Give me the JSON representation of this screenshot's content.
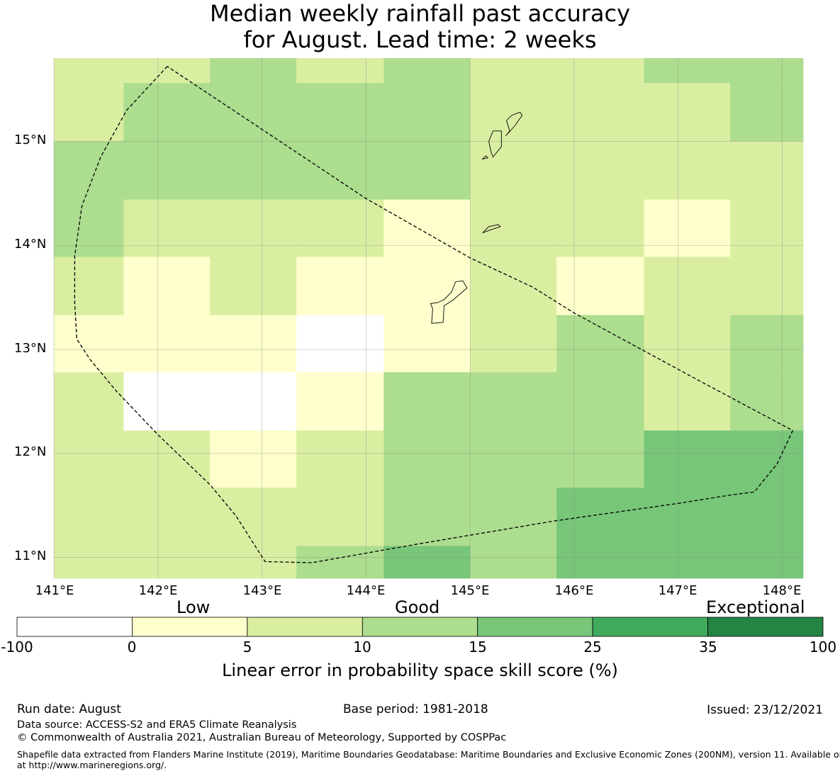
{
  "title": {
    "line1": "Median weekly rainfall past accuracy",
    "line2": "for August. Lead time: 2 weeks"
  },
  "map": {
    "lon_min": 141.0,
    "lon_max": 148.2,
    "lat_min": 10.8,
    "lat_max": 15.8,
    "x_ticks": [
      "141°E",
      "142°E",
      "143°E",
      "144°E",
      "145°E",
      "146°E",
      "147°E",
      "148°E"
    ],
    "y_ticks": [
      "15°N",
      "14°N",
      "13°N",
      "12°N",
      "11°N"
    ],
    "class_colors": {
      "0": "#ffffff",
      "1": "#feffcc",
      "2": "#daeea2",
      "3": "#addd8e",
      "4": "#78c679",
      "5": "#41ab5d",
      "6": "#238443"
    },
    "grid": {
      "columns": [
        {
          "lon_from": 141.0,
          "lon_to": 141.67,
          "cells": [
            [
              15.56,
              15.8,
              2
            ],
            [
              15.0,
              15.56,
              2
            ],
            [
              14.44,
              15.0,
              3
            ],
            [
              13.89,
              14.44,
              3
            ],
            [
              13.33,
              13.89,
              2
            ],
            [
              12.78,
              13.33,
              1
            ],
            [
              12.22,
              12.78,
              2
            ],
            [
              11.67,
              12.22,
              2
            ],
            [
              11.11,
              11.67,
              2
            ],
            [
              10.8,
              11.11,
              2
            ]
          ]
        },
        {
          "lon_from": 141.67,
          "lon_to": 142.5,
          "cells": [
            [
              15.56,
              15.8,
              2
            ],
            [
              15.0,
              15.56,
              3
            ],
            [
              14.44,
              15.0,
              3
            ],
            [
              13.89,
              14.44,
              2
            ],
            [
              13.33,
              13.89,
              1
            ],
            [
              12.78,
              13.33,
              1
            ],
            [
              12.22,
              12.78,
              0
            ],
            [
              11.67,
              12.22,
              2
            ],
            [
              11.11,
              11.67,
              2
            ],
            [
              10.8,
              11.11,
              2
            ]
          ]
        },
        {
          "lon_from": 142.5,
          "lon_to": 143.33,
          "cells": [
            [
              15.56,
              15.8,
              3
            ],
            [
              15.0,
              15.56,
              3
            ],
            [
              14.44,
              15.0,
              3
            ],
            [
              13.89,
              14.44,
              2
            ],
            [
              13.33,
              13.89,
              2
            ],
            [
              12.78,
              13.33,
              1
            ],
            [
              12.22,
              12.78,
              0
            ],
            [
              11.67,
              12.22,
              1
            ],
            [
              11.11,
              11.67,
              2
            ],
            [
              10.8,
              11.11,
              2
            ]
          ]
        },
        {
          "lon_from": 143.33,
          "lon_to": 144.17,
          "cells": [
            [
              15.56,
              15.8,
              2
            ],
            [
              15.0,
              15.56,
              3
            ],
            [
              14.44,
              15.0,
              3
            ],
            [
              13.89,
              14.44,
              2
            ],
            [
              13.33,
              13.89,
              1
            ],
            [
              12.78,
              13.33,
              0
            ],
            [
              12.22,
              12.78,
              1
            ],
            [
              11.67,
              12.22,
              2
            ],
            [
              11.11,
              11.67,
              2
            ],
            [
              10.8,
              11.11,
              3
            ]
          ]
        },
        {
          "lon_from": 144.17,
          "lon_to": 145.0,
          "cells": [
            [
              15.56,
              15.8,
              3
            ],
            [
              15.0,
              15.56,
              3
            ],
            [
              14.44,
              15.0,
              3
            ],
            [
              13.89,
              14.44,
              1
            ],
            [
              13.33,
              13.89,
              1
            ],
            [
              12.78,
              13.33,
              1
            ],
            [
              12.22,
              12.78,
              3
            ],
            [
              11.67,
              12.22,
              3
            ],
            [
              11.11,
              11.67,
              3
            ],
            [
              10.8,
              11.11,
              4
            ]
          ]
        },
        {
          "lon_from": 145.0,
          "lon_to": 145.83,
          "cells": [
            [
              15.56,
              15.8,
              2
            ],
            [
              15.0,
              15.56,
              2
            ],
            [
              14.44,
              15.0,
              2
            ],
            [
              13.89,
              14.44,
              2
            ],
            [
              13.33,
              13.89,
              2
            ],
            [
              12.78,
              13.33,
              2
            ],
            [
              12.22,
              12.78,
              3
            ],
            [
              11.67,
              12.22,
              3
            ],
            [
              11.11,
              11.67,
              3
            ],
            [
              10.8,
              11.11,
              3
            ]
          ]
        },
        {
          "lon_from": 145.83,
          "lon_to": 146.67,
          "cells": [
            [
              15.56,
              15.8,
              2
            ],
            [
              15.0,
              15.56,
              2
            ],
            [
              14.44,
              15.0,
              2
            ],
            [
              13.89,
              14.44,
              2
            ],
            [
              13.33,
              13.89,
              1
            ],
            [
              12.78,
              13.33,
              3
            ],
            [
              12.22,
              12.78,
              3
            ],
            [
              11.67,
              12.22,
              3
            ],
            [
              11.11,
              11.67,
              4
            ],
            [
              10.8,
              11.11,
              4
            ]
          ]
        },
        {
          "lon_from": 146.67,
          "lon_to": 147.5,
          "cells": [
            [
              15.56,
              15.8,
              3
            ],
            [
              15.0,
              15.56,
              2
            ],
            [
              14.44,
              15.0,
              2
            ],
            [
              13.89,
              14.44,
              1
            ],
            [
              13.33,
              13.89,
              2
            ],
            [
              12.78,
              13.33,
              2
            ],
            [
              12.22,
              12.78,
              2
            ],
            [
              11.67,
              12.22,
              4
            ],
            [
              11.11,
              11.67,
              4
            ],
            [
              10.8,
              11.11,
              4
            ]
          ]
        },
        {
          "lon_from": 147.5,
          "lon_to": 148.2,
          "cells": [
            [
              15.56,
              15.8,
              3
            ],
            [
              15.0,
              15.56,
              3
            ],
            [
              14.44,
              15.0,
              2
            ],
            [
              13.89,
              14.44,
              2
            ],
            [
              13.33,
              13.89,
              2
            ],
            [
              12.78,
              13.33,
              3
            ],
            [
              12.22,
              12.78,
              3
            ],
            [
              11.67,
              12.22,
              4
            ],
            [
              11.11,
              11.67,
              4
            ],
            [
              10.8,
              11.11,
              4
            ]
          ]
        }
      ]
    },
    "eez_boundary": [
      [
        142.09,
        15.72
      ],
      [
        141.7,
        15.3
      ],
      [
        141.45,
        14.85
      ],
      [
        141.27,
        14.38
      ],
      [
        141.2,
        13.9
      ],
      [
        141.2,
        13.45
      ],
      [
        141.22,
        13.1
      ],
      [
        141.35,
        12.9
      ],
      [
        141.6,
        12.6
      ],
      [
        142.0,
        12.18
      ],
      [
        142.5,
        11.7
      ],
      [
        142.75,
        11.4
      ],
      [
        143.03,
        10.96
      ],
      [
        143.48,
        10.95
      ],
      [
        144.5,
        11.13
      ],
      [
        145.8,
        11.35
      ],
      [
        147.0,
        11.52
      ],
      [
        147.5,
        11.6
      ],
      [
        147.73,
        11.63
      ],
      [
        147.95,
        11.9
      ],
      [
        148.1,
        12.22
      ],
      [
        147.2,
        12.7
      ],
      [
        146.0,
        13.35
      ],
      [
        145.6,
        13.6
      ],
      [
        145.0,
        13.88
      ],
      [
        144.0,
        14.45
      ],
      [
        142.09,
        15.72
      ]
    ],
    "islands": [
      [
        [
          144.63,
          13.25
        ],
        [
          144.74,
          13.26
        ],
        [
          144.75,
          13.42
        ],
        [
          144.83,
          13.47
        ],
        [
          144.97,
          13.59
        ],
        [
          144.93,
          13.66
        ],
        [
          144.86,
          13.65
        ],
        [
          144.82,
          13.55
        ],
        [
          144.75,
          13.48
        ],
        [
          144.69,
          13.45
        ],
        [
          144.62,
          13.44
        ],
        [
          144.64,
          13.39
        ],
        [
          144.63,
          13.25
        ]
      ],
      [
        [
          145.22,
          14.85
        ],
        [
          145.3,
          14.95
        ],
        [
          145.3,
          15.1
        ],
        [
          145.22,
          15.1
        ],
        [
          145.18,
          15.0
        ],
        [
          145.2,
          14.9
        ],
        [
          145.22,
          14.85
        ]
      ],
      [
        [
          145.34,
          15.05
        ],
        [
          145.43,
          15.15
        ],
        [
          145.5,
          15.25
        ],
        [
          145.48,
          15.28
        ],
        [
          145.4,
          15.25
        ],
        [
          145.35,
          15.2
        ],
        [
          145.38,
          15.1
        ],
        [
          145.34,
          15.05
        ]
      ],
      [
        [
          145.12,
          14.83
        ],
        [
          145.17,
          14.84
        ],
        [
          145.15,
          14.86
        ],
        [
          145.12,
          14.83
        ]
      ],
      [
        [
          145.12,
          14.12
        ],
        [
          145.2,
          14.15
        ],
        [
          145.29,
          14.18
        ],
        [
          145.27,
          14.2
        ],
        [
          145.18,
          14.18
        ],
        [
          145.12,
          14.12
        ]
      ]
    ]
  },
  "colorbar": {
    "category_labels": {
      "low": "Low",
      "good": "Good",
      "exceptional": "Exceptional"
    },
    "bins": [
      {
        "from": "-100",
        "to": "0",
        "color": "#ffffff"
      },
      {
        "from": "0",
        "to": "5",
        "color": "#feffcc"
      },
      {
        "from": "5",
        "to": "10",
        "color": "#daeea2"
      },
      {
        "from": "10",
        "to": "15",
        "color": "#addd8e"
      },
      {
        "from": "15",
        "to": "25",
        "color": "#78c679"
      },
      {
        "from": "25",
        "to": "35",
        "color": "#41ab5d"
      },
      {
        "from": "35",
        "to": "100",
        "color": "#238443"
      }
    ],
    "tick_labels": [
      "-100",
      "0",
      "5",
      "10",
      "15",
      "25",
      "35",
      "100"
    ],
    "title": "Linear error in probability space skill score (%)"
  },
  "footer": {
    "run_date": "Run date: August",
    "base_period": "Base period: 1981-2018",
    "issued": "Issued: 23/12/2021",
    "data_source": "Data source: ACCESS-S2 and ERA5 Climate Reanalysis",
    "copyright": "© Commonwealth of Australia 2021, Australian Bureau of Meteorology, Supported by COSPPac",
    "shapefile_line1": "Shapefile data extracted from Flanders Marine Institute (2019), Maritime Boundaries Geodatabase: Maritime Boundaries and Exclusive Economic Zones (200NM), version 11. Available online",
    "shapefile_line2": "at http://www.marineregions.org/."
  }
}
